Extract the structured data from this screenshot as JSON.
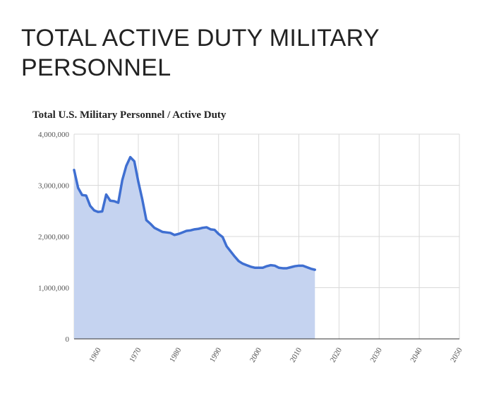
{
  "page": {
    "headline": "TOTAL ACTIVE DUTY MILITARY PERSONNEL"
  },
  "chart_data": {
    "type": "area",
    "title": "Total U.S. Military Personnel / Active Duty",
    "xlabel": "",
    "ylabel": "",
    "xlim": [
      1954,
      2050
    ],
    "ylim": [
      0,
      4000000
    ],
    "y_ticks": [
      0,
      1000000,
      2000000,
      3000000,
      4000000
    ],
    "y_tick_labels": [
      "0",
      "1,000,000",
      "2,000,000",
      "3,000,000",
      "4,000,000"
    ],
    "x_ticks": [
      1960,
      1970,
      1980,
      1990,
      2000,
      2010,
      2020,
      2030,
      2040,
      2050
    ],
    "x_tick_labels": [
      "1960",
      "1970",
      "1980",
      "1990",
      "2000",
      "2010",
      "2020",
      "2030",
      "2040",
      "2050"
    ],
    "grid": true,
    "colors": {
      "line": "#3f6fd1",
      "fill": "#c5d3f0",
      "grid": "#d9d9d9"
    },
    "series": [
      {
        "name": "Active Duty",
        "x": [
          1954,
          1955,
          1956,
          1957,
          1958,
          1959,
          1960,
          1961,
          1962,
          1963,
          1964,
          1965,
          1966,
          1967,
          1968,
          1969,
          1970,
          1971,
          1972,
          1973,
          1974,
          1975,
          1976,
          1977,
          1978,
          1979,
          1980,
          1981,
          1982,
          1983,
          1984,
          1985,
          1986,
          1987,
          1988,
          1989,
          1990,
          1991,
          1992,
          1993,
          1994,
          1995,
          1996,
          1997,
          1998,
          1999,
          2000,
          2001,
          2002,
          2003,
          2004,
          2005,
          2006,
          2007,
          2008,
          2009,
          2010,
          2011,
          2012,
          2013,
          2014
        ],
        "values": [
          3300000,
          2950000,
          2810000,
          2800000,
          2600000,
          2510000,
          2480000,
          2490000,
          2820000,
          2700000,
          2690000,
          2660000,
          3100000,
          3380000,
          3550000,
          3470000,
          3070000,
          2720000,
          2320000,
          2250000,
          2170000,
          2130000,
          2090000,
          2080000,
          2070000,
          2030000,
          2050000,
          2080000,
          2110000,
          2120000,
          2140000,
          2150000,
          2170000,
          2180000,
          2140000,
          2130000,
          2050000,
          1990000,
          1810000,
          1710000,
          1610000,
          1520000,
          1470000,
          1440000,
          1410000,
          1390000,
          1390000,
          1390000,
          1420000,
          1440000,
          1430000,
          1390000,
          1380000,
          1380000,
          1400000,
          1420000,
          1430000,
          1430000,
          1400000,
          1370000,
          1350000
        ]
      }
    ]
  }
}
